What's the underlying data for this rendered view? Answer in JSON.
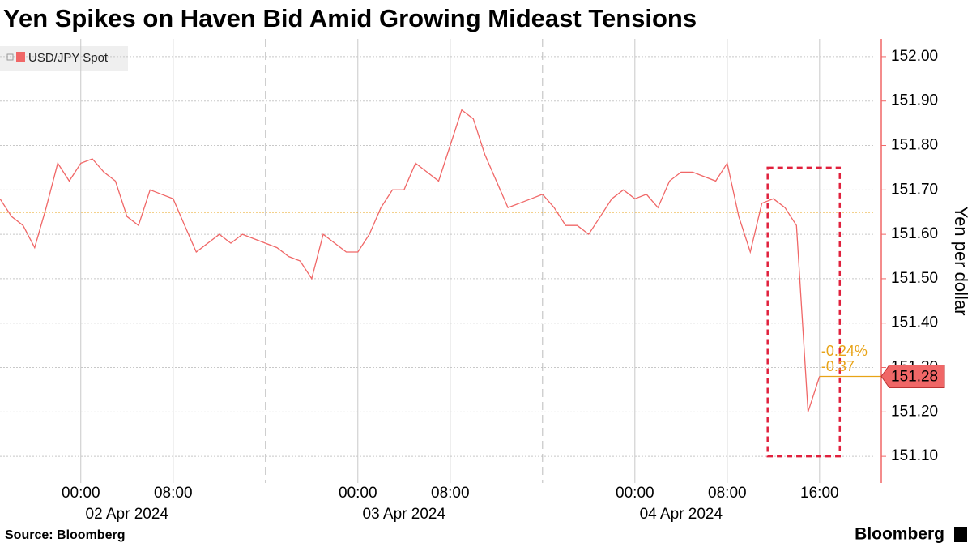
{
  "chart_data": {
    "type": "line",
    "title": "Yen Spikes on Haven Bid Amid Growing Mideast Tensions",
    "y_axis_label": "Yen per dollar",
    "source": "Source: Bloomberg",
    "brand": "Bloomberg",
    "x": [
      "2024-04-01 17:00",
      "2024-04-01 18:00",
      "2024-04-01 19:00",
      "2024-04-01 20:00",
      "2024-04-01 21:00",
      "2024-04-01 22:00",
      "2024-04-01 23:00",
      "2024-04-02 00:00",
      "2024-04-02 01:00",
      "2024-04-02 02:00",
      "2024-04-02 03:00",
      "2024-04-02 04:00",
      "2024-04-02 05:00",
      "2024-04-02 06:00",
      "2024-04-02 07:00",
      "2024-04-02 08:00",
      "2024-04-02 09:00",
      "2024-04-02 10:00",
      "2024-04-02 11:00",
      "2024-04-02 12:00",
      "2024-04-02 13:00",
      "2024-04-02 14:00",
      "2024-04-02 15:00",
      "2024-04-02 16:00",
      "2024-04-02 17:00",
      "2024-04-02 18:00",
      "2024-04-02 19:00",
      "2024-04-02 20:00",
      "2024-04-02 21:00",
      "2024-04-02 22:00",
      "2024-04-02 23:00",
      "2024-04-03 00:00",
      "2024-04-03 01:00",
      "2024-04-03 02:00",
      "2024-04-03 03:00",
      "2024-04-03 04:00",
      "2024-04-03 05:00",
      "2024-04-03 06:00",
      "2024-04-03 07:00",
      "2024-04-03 08:00",
      "2024-04-03 09:00",
      "2024-04-03 10:00",
      "2024-04-03 11:00",
      "2024-04-03 12:00",
      "2024-04-03 13:00",
      "2024-04-03 14:00",
      "2024-04-03 15:00",
      "2024-04-03 16:00",
      "2024-04-03 17:00",
      "2024-04-03 18:00",
      "2024-04-03 19:00",
      "2024-04-03 20:00",
      "2024-04-03 21:00",
      "2024-04-03 22:00",
      "2024-04-03 23:00",
      "2024-04-04 00:00",
      "2024-04-04 01:00",
      "2024-04-04 02:00",
      "2024-04-04 03:00",
      "2024-04-04 04:00",
      "2024-04-04 05:00",
      "2024-04-04 06:00",
      "2024-04-04 07:00",
      "2024-04-04 08:00",
      "2024-04-04 09:00",
      "2024-04-04 10:00",
      "2024-04-04 11:00",
      "2024-04-04 12:00",
      "2024-04-04 13:00",
      "2024-04-04 14:00",
      "2024-04-04 15:00",
      "2024-04-04 16:00"
    ],
    "series": [
      {
        "name": "USD/JPY Spot",
        "color": "#f06767",
        "values": [
          151.68,
          151.64,
          151.62,
          151.57,
          151.66,
          151.76,
          151.72,
          151.76,
          151.77,
          151.74,
          151.72,
          151.64,
          151.62,
          151.7,
          151.69,
          151.68,
          151.62,
          151.56,
          151.58,
          151.6,
          151.58,
          151.6,
          151.59,
          151.58,
          151.57,
          151.55,
          151.54,
          151.5,
          151.6,
          151.58,
          151.56,
          151.56,
          151.6,
          151.66,
          151.7,
          151.7,
          151.76,
          151.74,
          151.72,
          151.8,
          151.88,
          151.86,
          151.78,
          151.72,
          151.66,
          151.67,
          151.68,
          151.69,
          151.66,
          151.62,
          151.62,
          151.6,
          151.64,
          151.68,
          151.7,
          151.68,
          151.69,
          151.66,
          151.72,
          151.74,
          151.74,
          151.73,
          151.72,
          151.76,
          151.64,
          151.56,
          151.67,
          151.68,
          151.66,
          151.62,
          151.2,
          151.28
        ]
      }
    ],
    "reference_line": {
      "value": 151.65,
      "color": "#e8a317"
    },
    "annotations": [
      "-0.24%",
      "-0.37"
    ],
    "highlight_box": {
      "xlim": [
        "2024-04-04 11:30",
        "2024-04-04 17:45"
      ],
      "ylim": [
        151.1,
        151.75
      ],
      "color": "#e0203c"
    },
    "xlim": [
      "2024-04-01 17:00",
      "2024-04-04 20:47"
    ],
    "xticks": [
      {
        "value": "2024-04-02 00:00",
        "label": "00:00"
      },
      {
        "value": "2024-04-02 08:00",
        "label": "08:00"
      },
      {
        "value": "2024-04-03 00:00",
        "label": "00:00"
      },
      {
        "value": "2024-04-03 08:00",
        "label": "08:00"
      },
      {
        "value": "2024-04-04 00:00",
        "label": "00:00"
      },
      {
        "value": "2024-04-04 08:00",
        "label": "08:00"
      },
      {
        "value": "2024-04-04 16:00",
        "label": "16:00"
      }
    ],
    "date_labels": [
      "02 Apr 2024",
      "03 Apr 2024",
      "04 Apr 2024"
    ],
    "day_separators": [
      "2024-04-02 16:00",
      "2024-04-03 16:00"
    ],
    "ylim": [
      151.04,
      152.04
    ],
    "yticks": [
      {
        "value": 151.1,
        "label": "151.10"
      },
      {
        "value": 151.2,
        "label": "151.20"
      },
      {
        "value": 151.3,
        "label": "151.30"
      },
      {
        "value": 151.4,
        "label": "151.40"
      },
      {
        "value": 151.5,
        "label": "151.50"
      },
      {
        "value": 151.6,
        "label": "151.60"
      },
      {
        "value": 151.7,
        "label": "151.70"
      },
      {
        "value": 151.8,
        "label": "151.80"
      },
      {
        "value": 151.9,
        "label": "151.90"
      },
      {
        "value": 152,
        "label": "152.00"
      }
    ],
    "grid": true
  }
}
